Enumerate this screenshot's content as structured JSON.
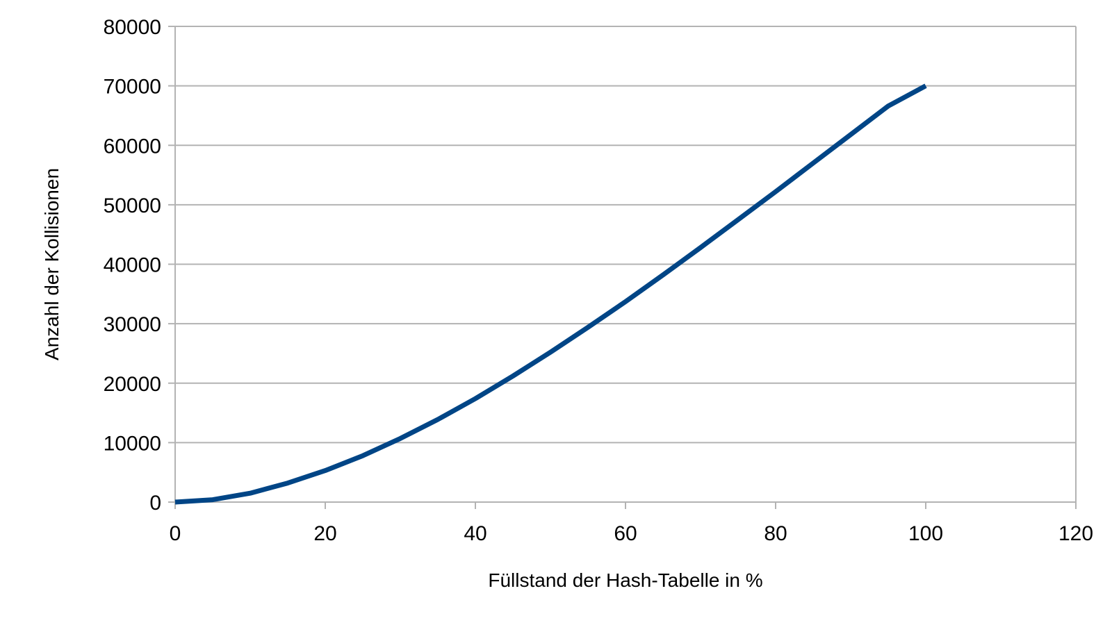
{
  "chart_data": {
    "type": "line",
    "title": "",
    "xlabel": "Füllstand der Hash-Tabelle in %",
    "ylabel": "Anzahl der Kollisionen",
    "xlim": [
      0,
      120
    ],
    "ylim": [
      0,
      80000
    ],
    "xticks": [
      0,
      20,
      40,
      60,
      80,
      100,
      120
    ],
    "yticks": [
      0,
      10000,
      20000,
      30000,
      40000,
      50000,
      60000,
      70000,
      80000
    ],
    "grid": "horizontal",
    "legend": "none",
    "series": [
      {
        "color": "#004586",
        "x": [
          0,
          5,
          10,
          15,
          20,
          25,
          30,
          35,
          40,
          45,
          50,
          55,
          60,
          65,
          70,
          75,
          80,
          85,
          90,
          95,
          100
        ],
        "y": [
          0,
          400,
          1500,
          3200,
          5300,
          7800,
          10700,
          13900,
          17400,
          21200,
          25200,
          29400,
          33700,
          38200,
          42800,
          47500,
          52200,
          57000,
          61800,
          66600,
          70000
        ]
      }
    ]
  }
}
